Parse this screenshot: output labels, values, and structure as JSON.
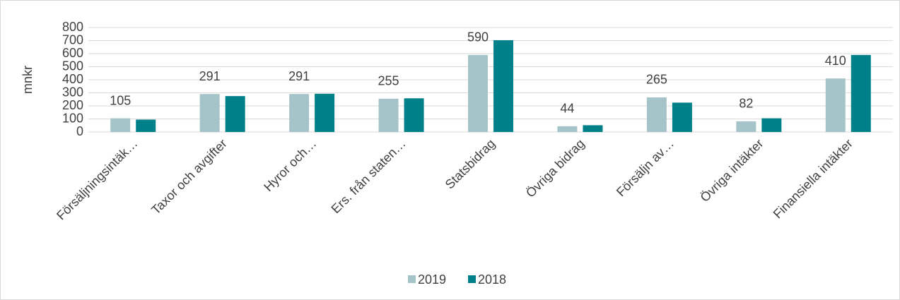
{
  "chart_data": {
    "type": "bar",
    "y_label": "mnkr",
    "categories": [
      "Försäljningsintäk…",
      "Taxor och avgifter",
      "Hyror och…",
      "Ers. från staten…",
      "Statsbidrag",
      "Övriga bidrag",
      "Försäljn av…",
      "Övriga intäkter",
      "Finansiella intäkter"
    ],
    "series": [
      {
        "name": "2019",
        "color": "#a5c4c9",
        "values": [
          105,
          291,
          291,
          255,
          590,
          44,
          265,
          82,
          410
        ],
        "labels": true
      },
      {
        "name": "2018",
        "color": "#00818a",
        "values": [
          95,
          275,
          293,
          258,
          703,
          52,
          225,
          105,
          590
        ],
        "labels": false
      }
    ],
    "ylim": [
      0,
      800
    ],
    "yticks": [
      0,
      100,
      200,
      300,
      400,
      500,
      600,
      700,
      800
    ],
    "grid": true,
    "legend": "bottom"
  }
}
